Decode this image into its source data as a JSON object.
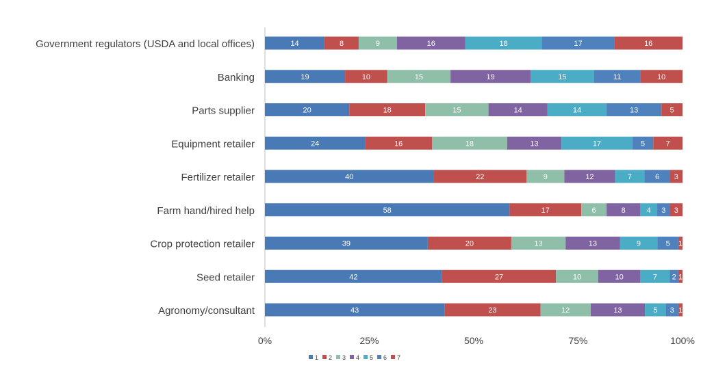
{
  "chart_data": {
    "type": "bar",
    "orientation": "horizontal",
    "stacked": "percent",
    "categories": [
      "Government regulators (USDA and local offices)",
      "Banking",
      "Parts supplier",
      "Equipment retailer",
      "Fertilizer retailer",
      "Farm hand/hired help",
      "Crop protection retailer",
      "Seed retailer",
      "Agronomy/consultant"
    ],
    "series": [
      {
        "name": "1",
        "color": "#4a7ab5",
        "values": [
          14,
          19,
          20,
          24,
          40,
          58,
          39,
          42,
          43
        ]
      },
      {
        "name": "2",
        "color": "#c0504d",
        "values": [
          8,
          10,
          18,
          16,
          22,
          17,
          20,
          27,
          23
        ]
      },
      {
        "name": "3",
        "color": "#8fbfa8",
        "values": [
          9,
          15,
          15,
          18,
          9,
          6,
          13,
          10,
          12
        ]
      },
      {
        "name": "4",
        "color": "#8064a2",
        "values": [
          16,
          19,
          14,
          13,
          12,
          8,
          13,
          10,
          13
        ]
      },
      {
        "name": "5",
        "color": "#4bacc6",
        "values": [
          18,
          15,
          14,
          17,
          7,
          4,
          9,
          7,
          5
        ]
      },
      {
        "name": "6",
        "color": "#4f81bd",
        "values": [
          17,
          11,
          13,
          5,
          6,
          3,
          5,
          2,
          3
        ]
      },
      {
        "name": "7",
        "color": "#c0504d",
        "values": [
          16,
          10,
          5,
          7,
          3,
          3,
          1,
          1,
          1
        ]
      }
    ],
    "x_ticks": [
      "0%",
      "25%",
      "50%",
      "75%",
      "100%"
    ],
    "xlim": [
      0,
      100
    ],
    "grid": false,
    "legend_position": "bottom-center",
    "data_labels": true
  }
}
